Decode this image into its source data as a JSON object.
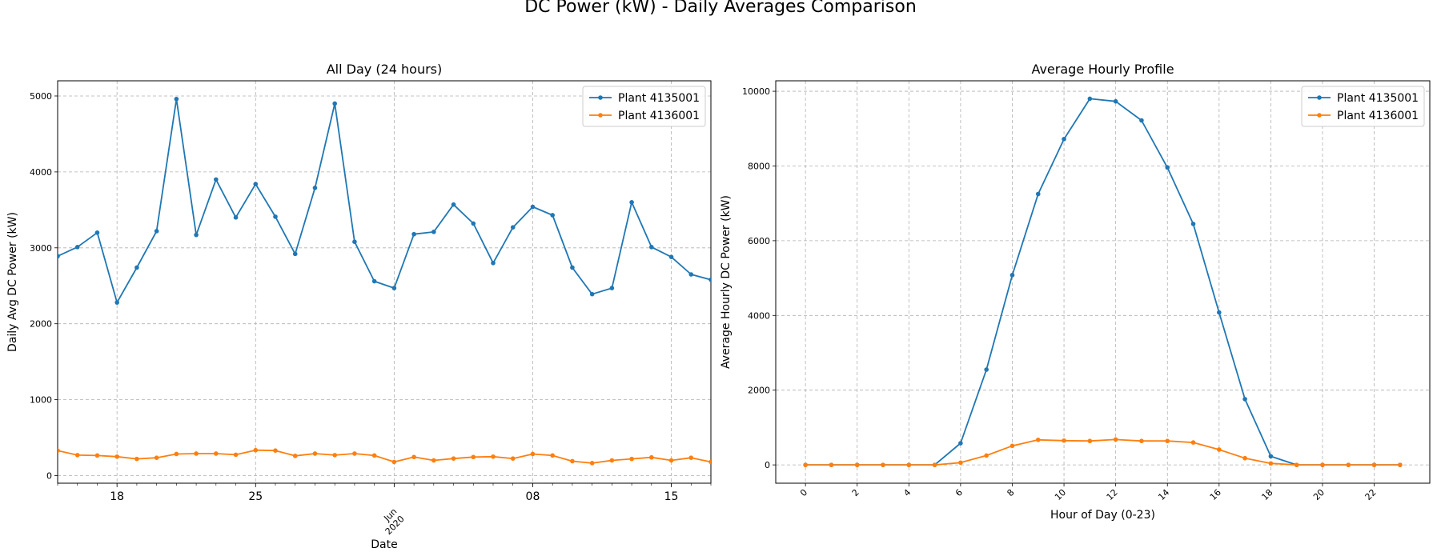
{
  "figure": {
    "suptitle": "DC Power (kW) - Daily Averages Comparison"
  },
  "colors": {
    "series_1": "#1f77b4",
    "series_2": "#ff7f0e",
    "grid": "#b0b0b0"
  },
  "chart_data": [
    {
      "type": "line",
      "title": "All Day (24 hours)",
      "xlabel": "Date",
      "ylabel": "Daily Avg DC Power (kW)",
      "x": [
        "2020-05-15",
        "2020-05-16",
        "2020-05-17",
        "2020-05-18",
        "2020-05-19",
        "2020-05-20",
        "2020-05-21",
        "2020-05-22",
        "2020-05-23",
        "2020-05-24",
        "2020-05-25",
        "2020-05-26",
        "2020-05-27",
        "2020-05-28",
        "2020-05-29",
        "2020-05-30",
        "2020-05-31",
        "2020-06-01",
        "2020-06-02",
        "2020-06-03",
        "2020-06-04",
        "2020-06-05",
        "2020-06-06",
        "2020-06-07",
        "2020-06-08",
        "2020-06-09",
        "2020-06-10",
        "2020-06-11",
        "2020-06-12",
        "2020-06-13",
        "2020-06-14",
        "2020-06-15",
        "2020-06-16",
        "2020-06-17"
      ],
      "xlim": [
        "2020-05-15",
        "2020-06-17"
      ],
      "ylim": [
        -100,
        5200
      ],
      "yticks": [
        0,
        1000,
        2000,
        3000,
        4000,
        5000
      ],
      "xtick_labels": [
        {
          "date": "2020-05-18",
          "label": "18"
        },
        {
          "date": "2020-05-25",
          "label": "25"
        },
        {
          "date": "2020-06-01",
          "label": "Jun\n2020"
        },
        {
          "date": "2020-06-08",
          "label": "08"
        },
        {
          "date": "2020-06-15",
          "label": "15"
        }
      ],
      "grid": true,
      "legend": "top-right",
      "series": [
        {
          "name": "Plant 4135001",
          "values": [
            2890,
            3010,
            3200,
            2280,
            2740,
            3220,
            4960,
            3170,
            3900,
            3400,
            3840,
            3410,
            2920,
            3790,
            4900,
            3080,
            2560,
            2470,
            3180,
            3210,
            3570,
            3320,
            2800,
            3270,
            3540,
            3430,
            2740,
            2390,
            2470,
            3600,
            3010,
            2880,
            2650,
            2580
          ]
        },
        {
          "name": "Plant 4136001",
          "values": [
            330,
            270,
            265,
            250,
            220,
            235,
            285,
            290,
            290,
            275,
            335,
            330,
            260,
            290,
            270,
            290,
            265,
            180,
            245,
            200,
            225,
            245,
            250,
            225,
            285,
            265,
            190,
            165,
            200,
            220,
            240,
            200,
            235,
            180
          ]
        }
      ]
    },
    {
      "type": "line",
      "title": "Average Hourly Profile",
      "xlabel": "Hour of Day (0-23)",
      "ylabel": "Average Hourly DC Power (kW)",
      "x": [
        0,
        1,
        2,
        3,
        4,
        5,
        6,
        7,
        8,
        9,
        10,
        11,
        12,
        13,
        14,
        15,
        16,
        17,
        18,
        19,
        20,
        21,
        22,
        23
      ],
      "xlim": [
        -1.15,
        24.15
      ],
      "ylim": [
        -490,
        10280
      ],
      "xticks": [
        0,
        2,
        4,
        6,
        8,
        10,
        12,
        14,
        16,
        18,
        20,
        22
      ],
      "yticks": [
        0,
        2000,
        4000,
        6000,
        8000,
        10000
      ],
      "grid": true,
      "legend": "top-right",
      "series": [
        {
          "name": "Plant 4135001",
          "values": [
            0,
            0,
            0,
            0,
            0,
            0,
            580,
            2550,
            5080,
            7250,
            8720,
            9800,
            9730,
            9220,
            7960,
            6450,
            4080,
            1760,
            230,
            0,
            0,
            0,
            0,
            0
          ]
        },
        {
          "name": "Plant 4136001",
          "values": [
            0,
            0,
            0,
            0,
            0,
            0,
            60,
            250,
            510,
            670,
            650,
            640,
            680,
            640,
            640,
            600,
            410,
            180,
            40,
            0,
            0,
            0,
            0,
            0
          ]
        }
      ]
    }
  ]
}
